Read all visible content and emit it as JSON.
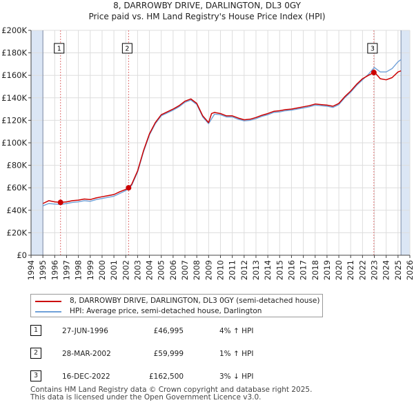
{
  "chart_data": {
    "type": "line",
    "title": "8, DARROWBY DRIVE, DARLINGTON, DL3 0GY",
    "subtitle": "Price paid vs. HM Land Registry's House Price Index (HPI)",
    "xlim": [
      1994,
      2026
    ],
    "ylim": [
      0,
      200000
    ],
    "x_ticks": [
      "1994",
      "1995",
      "1996",
      "1997",
      "1998",
      "1999",
      "2000",
      "2001",
      "2002",
      "2003",
      "2004",
      "2005",
      "2006",
      "2007",
      "2008",
      "2009",
      "2010",
      "2011",
      "2012",
      "2013",
      "2014",
      "2015",
      "2016",
      "2017",
      "2018",
      "2019",
      "2020",
      "2021",
      "2022",
      "2023",
      "2024",
      "2025",
      "2026"
    ],
    "y_ticks": [
      {
        "value": 0,
        "label": "£0"
      },
      {
        "value": 20000,
        "label": "£20K"
      },
      {
        "value": 40000,
        "label": "£40K"
      },
      {
        "value": 60000,
        "label": "£60K"
      },
      {
        "value": 80000,
        "label": "£80K"
      },
      {
        "value": 100000,
        "label": "£100K"
      },
      {
        "value": 120000,
        "label": "£120K"
      },
      {
        "value": 140000,
        "label": "£140K"
      },
      {
        "value": 160000,
        "label": "£160K"
      },
      {
        "value": 180000,
        "label": "£180K"
      },
      {
        "value": 200000,
        "label": "£200K"
      }
    ],
    "data_start": 1995.0,
    "data_end": 2025.25,
    "series": [
      {
        "name": "8, DARROWBY DRIVE, DARLINGTON, DL3 0GY (semi-detached house)",
        "color": "#cc0000",
        "x": [
          1995.0,
          1995.5,
          1996.0,
          1996.49,
          1997.0,
          1997.5,
          1998.0,
          1998.5,
          1999.0,
          1999.5,
          2000.0,
          2000.5,
          2001.0,
          2001.5,
          2002.0,
          2002.24,
          2002.5,
          2003.0,
          2003.5,
          2004.0,
          2004.5,
          2005.0,
          2005.5,
          2006.0,
          2006.5,
          2007.0,
          2007.5,
          2008.0,
          2008.5,
          2009.0,
          2009.25,
          2009.5,
          2010.0,
          2010.5,
          2011.0,
          2011.5,
          2012.0,
          2012.5,
          2013.0,
          2013.5,
          2014.0,
          2014.5,
          2015.0,
          2015.5,
          2016.0,
          2016.5,
          2017.0,
          2017.5,
          2018.0,
          2018.5,
          2019.0,
          2019.5,
          2020.0,
          2020.5,
          2021.0,
          2021.5,
          2022.0,
          2022.5,
          2022.96,
          2023.0,
          2023.5,
          2024.0,
          2024.5,
          2025.0,
          2025.25
        ],
        "y": [
          46000,
          48500,
          47500,
          46995,
          47500,
          48500,
          49000,
          50000,
          49500,
          51000,
          52000,
          53000,
          54000,
          56500,
          58500,
          59999,
          63000,
          75000,
          93000,
          108000,
          118000,
          125000,
          127500,
          130000,
          133000,
          137000,
          139000,
          135000,
          124000,
          118000,
          126000,
          127000,
          126000,
          124000,
          124000,
          122000,
          120500,
          121000,
          122500,
          124500,
          126000,
          128000,
          128500,
          129500,
          130000,
          131000,
          132000,
          133000,
          134500,
          134000,
          133500,
          132500,
          135000,
          141000,
          146000,
          152000,
          157000,
          160000,
          162500,
          163000,
          157000,
          156000,
          158000,
          163000,
          164000
        ]
      },
      {
        "name": "HPI: Average price, semi-detached house, Darlington",
        "color": "#6fa0d8",
        "x": [
          1995.0,
          1995.5,
          1996.0,
          1996.5,
          1997.0,
          1997.5,
          1998.0,
          1998.5,
          1999.0,
          1999.5,
          2000.0,
          2000.5,
          2001.0,
          2001.5,
          2002.0,
          2002.5,
          2003.0,
          2003.5,
          2004.0,
          2004.5,
          2005.0,
          2005.5,
          2006.0,
          2006.5,
          2007.0,
          2007.5,
          2008.0,
          2008.5,
          2009.0,
          2009.5,
          2010.0,
          2010.5,
          2011.0,
          2011.5,
          2012.0,
          2012.5,
          2013.0,
          2013.5,
          2014.0,
          2014.5,
          2015.0,
          2015.5,
          2016.0,
          2016.5,
          2017.0,
          2017.5,
          2018.0,
          2018.5,
          2019.0,
          2019.5,
          2020.0,
          2020.5,
          2021.0,
          2021.5,
          2022.0,
          2022.5,
          2023.0,
          2023.5,
          2024.0,
          2024.5,
          2025.0,
          2025.25
        ],
        "y": [
          44000,
          46000,
          45500,
          45200,
          46000,
          47000,
          47500,
          48500,
          48000,
          49500,
          50500,
          51500,
          52500,
          55000,
          57500,
          62000,
          74000,
          92000,
          107000,
          117000,
          124000,
          126500,
          129000,
          132000,
          136000,
          138000,
          134000,
          123000,
          117000,
          125500,
          125000,
          123000,
          123000,
          121000,
          119500,
          120000,
          121500,
          123500,
          125000,
          127000,
          127500,
          128500,
          129000,
          130000,
          131000,
          132000,
          133500,
          133000,
          132500,
          131500,
          134000,
          140000,
          145000,
          151000,
          156000,
          161000,
          167000,
          163000,
          163000,
          166000,
          172000,
          174000
        ]
      }
    ],
    "sales": [
      {
        "num": "1",
        "x": 1996.49,
        "y": 46995,
        "date": "27-JUN-1996",
        "price": "£46,995",
        "hpi": "4% ↑ HPI"
      },
      {
        "num": "2",
        "x": 2002.24,
        "y": 59999,
        "date": "28-MAR-2002",
        "price": "£59,999",
        "hpi": "1% ↑ HPI"
      },
      {
        "num": "3",
        "x": 2022.96,
        "y": 162500,
        "date": "16-DEC-2022",
        "price": "£162,500",
        "hpi": "3% ↓ HPI"
      }
    ]
  },
  "legend": {
    "property_label": "8, DARROWBY DRIVE, DARLINGTON, DL3 0GY (semi-detached house)",
    "hpi_label": "HPI: Average price, semi-detached house, Darlington"
  },
  "footer": {
    "line1": "Contains HM Land Registry data © Crown copyright and database right 2025.",
    "line2": "This data is licensed under the Open Government Licence v3.0."
  },
  "colors": {
    "property": "#cc0000",
    "hpi": "#6fa0d8",
    "grid": "#dddddd",
    "shade": "#dbe6f5",
    "marker_line": "#e07070"
  }
}
